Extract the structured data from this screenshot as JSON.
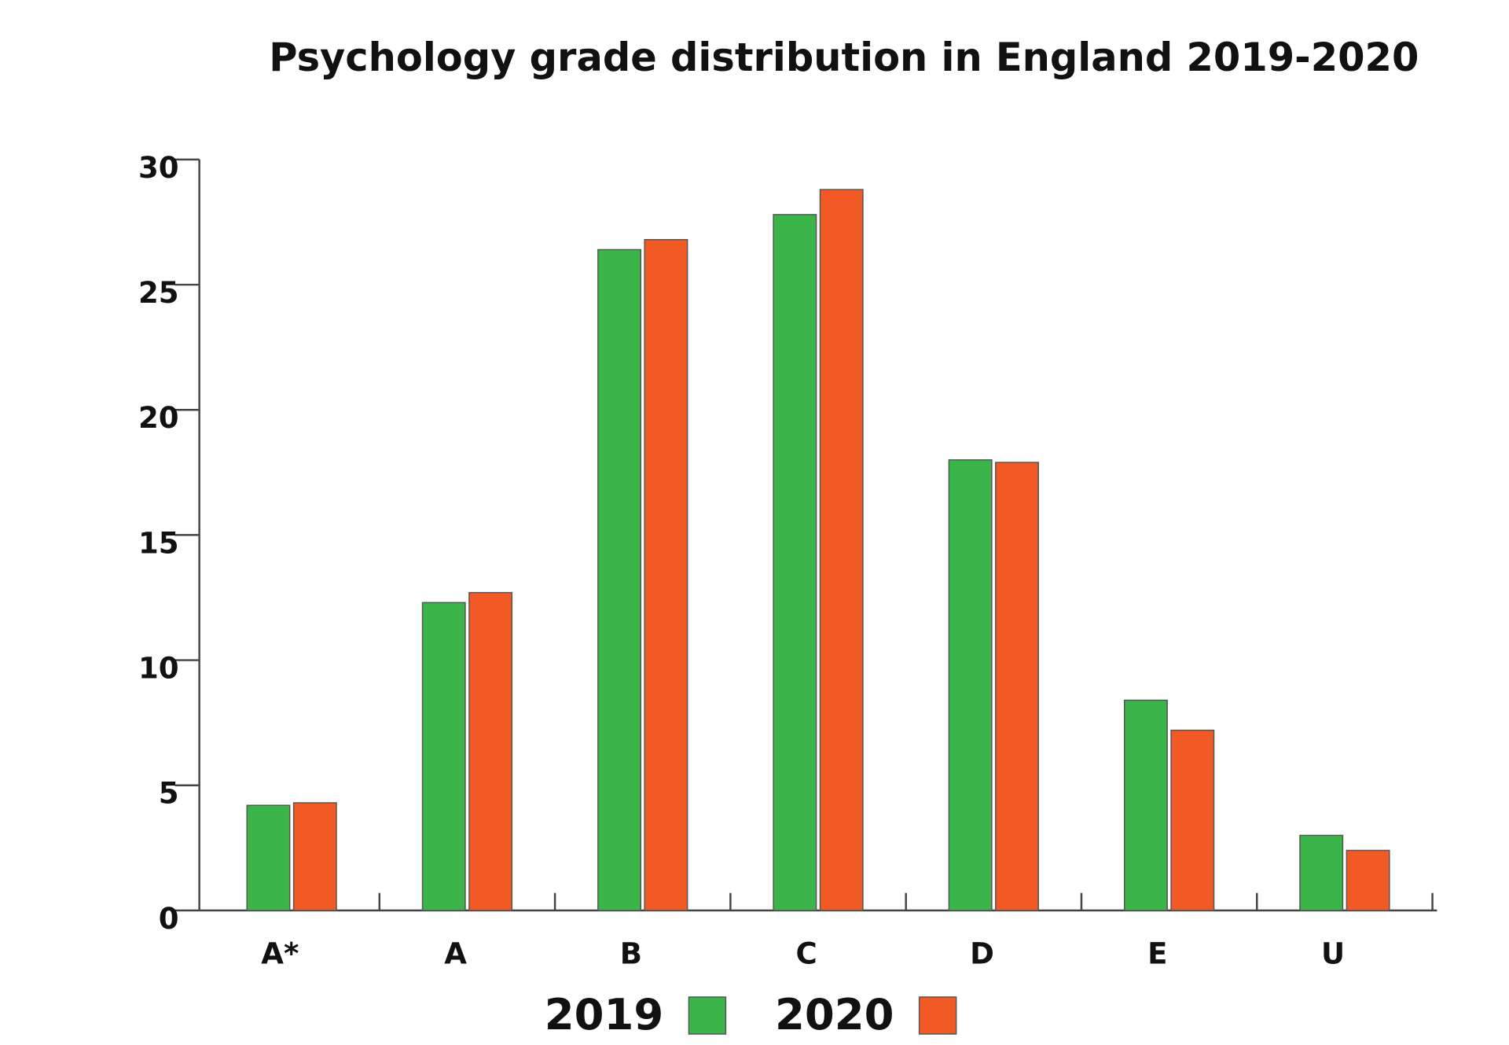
{
  "chart_data": {
    "type": "bar",
    "title": "Psychology grade distribution in England 2019-2020",
    "categories": [
      "A*",
      "A",
      "B",
      "C",
      "D",
      "E",
      "U"
    ],
    "series": [
      {
        "name": "2019",
        "color": "#3bb54a",
        "values": [
          4.2,
          12.3,
          26.4,
          27.8,
          18.0,
          8.4,
          3.0
        ]
      },
      {
        "name": "2020",
        "color": "#f15a24",
        "values": [
          4.3,
          12.7,
          26.8,
          28.8,
          17.9,
          7.2,
          2.4
        ]
      }
    ],
    "ylim": [
      0,
      30
    ],
    "yticks": [
      0,
      5,
      10,
      15,
      20,
      25,
      30
    ],
    "grid": false,
    "legend": "bottom"
  }
}
